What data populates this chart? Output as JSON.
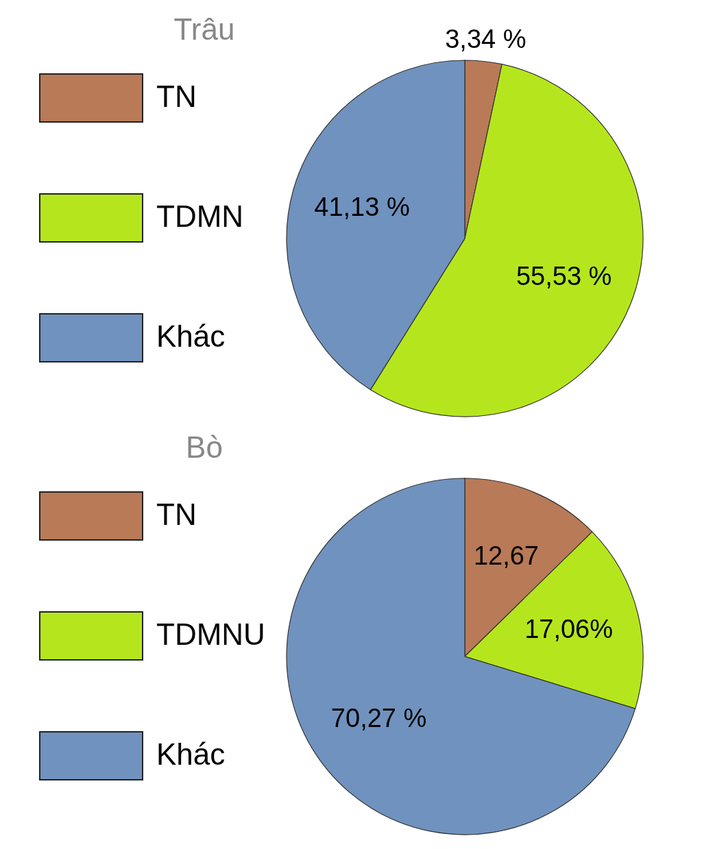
{
  "chart_data": [
    {
      "type": "pie",
      "title": "Trâu",
      "categories": [
        "TN",
        "TDMN",
        "Khác"
      ],
      "values": [
        3.34,
        55.53,
        41.13
      ],
      "colors": [
        "#b97a57",
        "#b5e61d",
        "#7092be"
      ],
      "value_labels": [
        "3,34 %",
        "55,53 %",
        "41,13 %"
      ],
      "legend": "left"
    },
    {
      "type": "pie",
      "title": "Bò",
      "categories": [
        "TN",
        "TDMNU",
        "Khác"
      ],
      "values": [
        12.67,
        17.06,
        70.27
      ],
      "colors": [
        "#b97a57",
        "#b5e61d",
        "#7092be"
      ],
      "value_labels": [
        "12,67",
        "17,06%",
        "70,27 %"
      ],
      "legend": "left"
    }
  ]
}
